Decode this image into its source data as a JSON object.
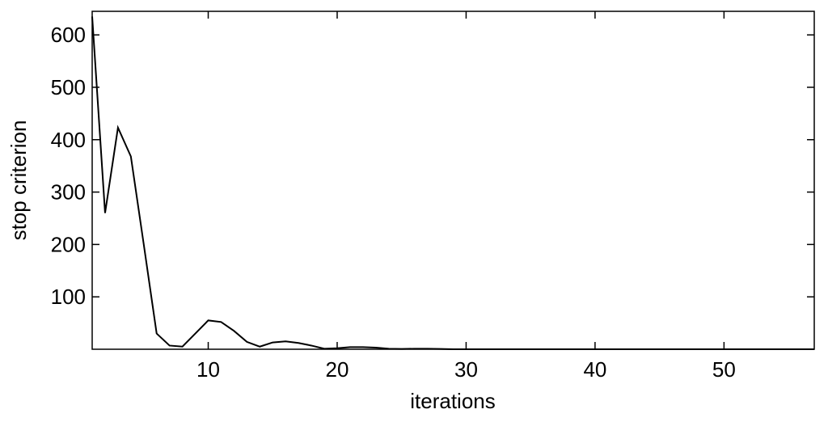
{
  "chart_data": {
    "type": "line",
    "xlabel": "iterations",
    "ylabel": "stop criterion",
    "x": [
      1,
      2,
      3,
      4,
      5,
      6,
      7,
      8,
      9,
      10,
      11,
      12,
      13,
      14,
      15,
      16,
      17,
      18,
      19,
      20,
      21,
      22,
      23,
      24,
      25,
      26,
      27,
      28,
      29,
      30,
      31,
      32,
      33,
      34,
      35,
      36,
      37,
      38,
      39,
      40,
      41,
      42,
      43,
      44,
      45,
      46,
      47,
      48,
      49,
      50,
      51,
      52,
      53,
      54,
      55,
      56,
      57
    ],
    "series": [
      {
        "color": "#000000",
        "values": [
          635,
          260,
          423,
          368,
          200,
          30,
          7,
          5,
          30,
          55,
          52,
          35,
          14,
          5,
          13,
          15,
          12,
          7,
          1,
          2,
          4,
          4,
          3,
          1,
          0.5,
          1,
          1,
          0.5,
          0,
          0,
          0,
          0,
          0,
          0,
          0,
          0,
          0,
          0,
          0,
          0,
          0,
          0,
          0,
          0,
          0,
          0,
          0,
          0,
          0,
          0,
          0,
          0,
          0,
          0,
          0,
          0,
          0
        ]
      }
    ],
    "xlim": [
      1,
      57
    ],
    "ylim": [
      0,
      645
    ],
    "xticks": [
      10,
      20,
      30,
      40,
      50
    ],
    "yticks": [
      100,
      200,
      300,
      400,
      500,
      600
    ]
  }
}
